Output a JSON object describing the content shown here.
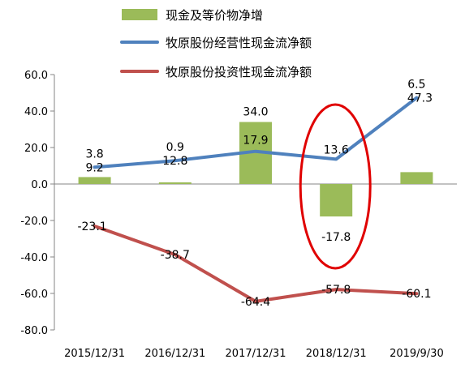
{
  "chart_data": {
    "type": "bar+line",
    "categories": [
      "2015/12/31",
      "2016/12/31",
      "2017/12/31",
      "2018/12/31",
      "2019/9/30"
    ],
    "series": [
      {
        "name": "现金及等价物净增",
        "kind": "bar",
        "color": "#9BBB59",
        "values": [
          3.8,
          0.9,
          34.0,
          -17.8,
          6.5
        ],
        "labels": [
          "3.8",
          "0.9",
          "34.0",
          "-17.8",
          "6.5"
        ]
      },
      {
        "name": "牧原股份经营性现金流净额",
        "kind": "line",
        "color": "#4F81BD",
        "values": [
          9.2,
          12.8,
          17.9,
          13.6,
          47.3
        ],
        "labels": [
          "9.2",
          "12.8",
          "17.9",
          "13.6",
          "47.3"
        ]
      },
      {
        "name": "牧原股份投资性现金流净额",
        "kind": "line",
        "color": "#C0504D",
        "values": [
          -23.1,
          -38.7,
          -64.4,
          -57.8,
          -60.1
        ],
        "labels": [
          "-23.1",
          "-38.7",
          "-64.4",
          "-57.8",
          "-60.1"
        ]
      }
    ],
    "y_ticks": [
      "60.0",
      "40.0",
      "20.0",
      "0.0",
      "-20.0",
      "-40.0",
      "-60.0",
      "-80.0"
    ],
    "ylim": [
      -80,
      60
    ],
    "legend_position": "top",
    "grid": false,
    "annotation": {
      "shape": "ellipse",
      "color": "#E00000",
      "category": "2018/12/31"
    }
  }
}
